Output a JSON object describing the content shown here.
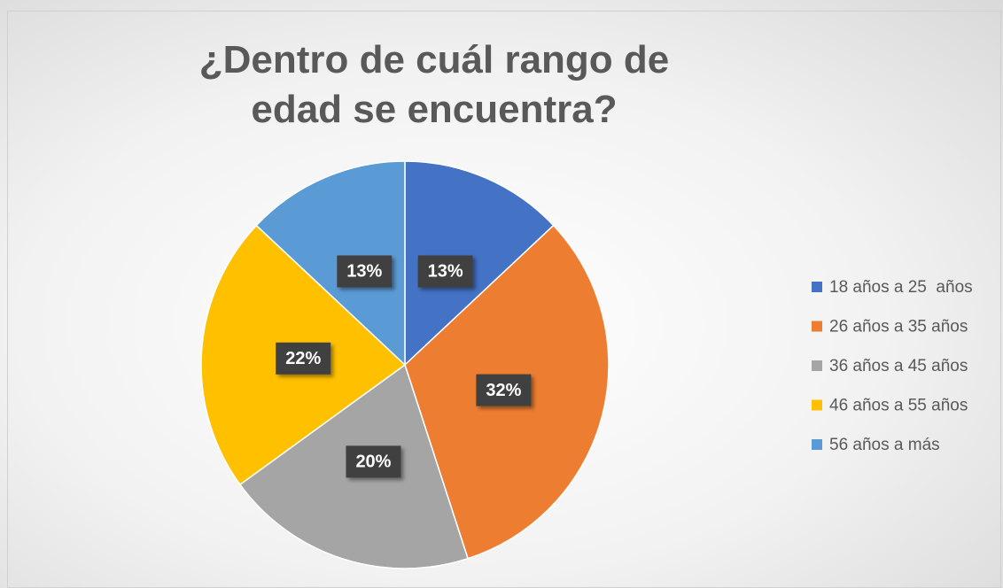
{
  "chart_data": {
    "type": "pie",
    "title": "¿Dentro de cuál rango de edad se encuentra?",
    "categories": [
      "18 años a 25  años",
      "26 años a 35 años",
      "36 años a 45 años",
      "46 años a 55 años",
      "56 años a más"
    ],
    "values": [
      13,
      32,
      20,
      22,
      13
    ],
    "value_labels": [
      "13%",
      "32%",
      "20%",
      "22%",
      "13%"
    ],
    "colors": [
      "#4472c4",
      "#ed7d31",
      "#a5a5a5",
      "#ffc000",
      "#5b9bd5"
    ],
    "legend": "right"
  }
}
